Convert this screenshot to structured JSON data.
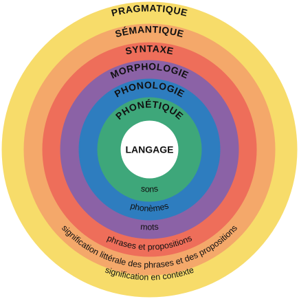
{
  "diagram": {
    "core": {
      "label": "LANGAGE",
      "color": "#ffffff"
    },
    "rings": [
      {
        "id": "pragmatique",
        "title": "PRAGMATIQUE",
        "description": "signification en contexte",
        "color": "#F7DC6A"
      },
      {
        "id": "semantique",
        "title": "SÉMANTIQUE",
        "description": "signification littérale des phrases et des propositions",
        "color": "#F4A86A"
      },
      {
        "id": "syntaxe",
        "title": "SYNTAXE",
        "description": "phrases et propositions",
        "color": "#EE6E5A"
      },
      {
        "id": "morphologie",
        "title": "MORPHOLOGIE",
        "description": "mots",
        "color": "#8B62A6"
      },
      {
        "id": "phonologie",
        "title": "PHONOLOGIE",
        "description": "phonèmes",
        "color": "#2E7DBF"
      },
      {
        "id": "phonetique",
        "title": "PHONÉTIQUE",
        "description": "sons",
        "color": "#3EA77A"
      }
    ]
  }
}
